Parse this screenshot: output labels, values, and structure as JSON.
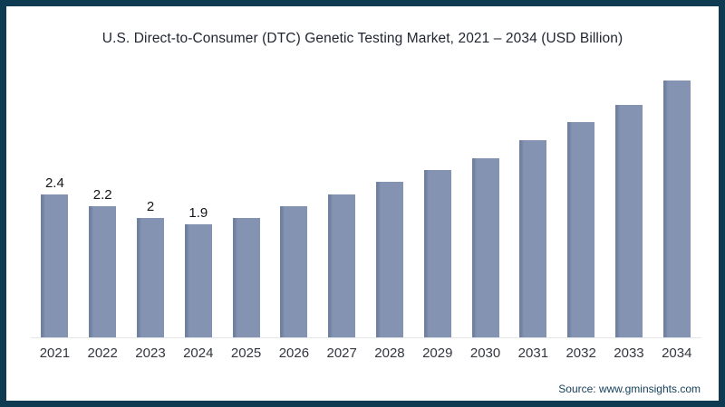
{
  "frame": {
    "border_color": "#0e3b52",
    "background": "#ffffff"
  },
  "title": "U.S. Direct-to-Consumer (DTC) Genetic Testing Market, 2021 – 2034 (USD Billion)",
  "source": "Source: www.gminsights.com",
  "chart_data": {
    "type": "bar",
    "title": "U.S. Direct-to-Consumer (DTC) Genetic Testing Market, 2021 – 2034 (USD Billion)",
    "categories": [
      "2021",
      "2022",
      "2023",
      "2024",
      "2025",
      "2026",
      "2027",
      "2028",
      "2029",
      "2030",
      "2031",
      "2032",
      "2033",
      "2034"
    ],
    "values": [
      2.4,
      2.2,
      2.0,
      1.9,
      2.0,
      2.2,
      2.4,
      2.6,
      2.8,
      3.0,
      3.3,
      3.6,
      3.9,
      4.3
    ],
    "data_labels": [
      "2.4",
      "2.2",
      "2",
      "1.9",
      "",
      "",
      "",
      "",
      "",
      "",
      "",
      "",
      "",
      ""
    ],
    "xlabel": "",
    "ylabel": "",
    "ylim": [
      0,
      4.5
    ],
    "grid": false,
    "legend": false,
    "bar_color": "#8393b1",
    "bar_edge_color": "#70819f",
    "baseline_color": "#e4e5e7"
  }
}
